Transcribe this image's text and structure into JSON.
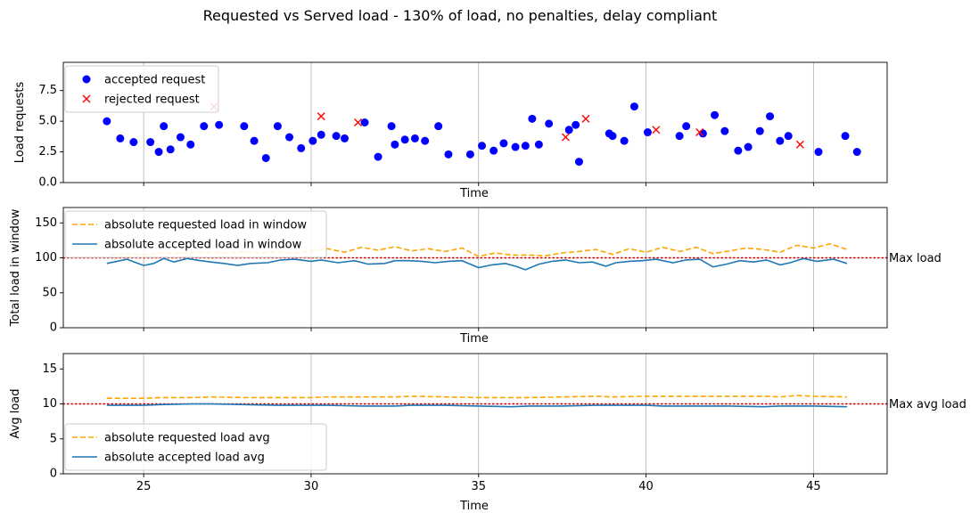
{
  "figure_title": "Requested vs Served load - 130% of load, no penalties, delay compliant",
  "colors": {
    "accepted_marker": "#0000ff",
    "rejected_marker": "#ff0000",
    "requested_line": "#ffa500",
    "accepted_line": "#1f77b4",
    "limit_line": "#cc0000",
    "grid": "#b0b0b0"
  },
  "chart_data": [
    {
      "type": "scatter",
      "xlabel": "Time",
      "ylabel": "Load requests",
      "xlim": [
        22.6,
        47.2
      ],
      "ylim": [
        0,
        9.8
      ],
      "xticks": [
        25,
        30,
        35,
        40,
        45
      ],
      "yticks": [
        0.0,
        2.5,
        5.0,
        7.5
      ],
      "ytick_labels": [
        "0.0",
        "2.5",
        "5.0",
        "7.5"
      ],
      "grid": "x",
      "legend_position": "upper-left",
      "series": [
        {
          "name": "accepted request",
          "marker": "circle",
          "color": "#0000ff",
          "x": [
            23.9,
            24.3,
            24.7,
            25.2,
            25.45,
            25.6,
            25.8,
            26.1,
            26.4,
            26.8,
            27.25,
            28.0,
            28.3,
            28.65,
            29.0,
            29.35,
            29.7,
            30.05,
            30.3,
            30.75,
            31.0,
            31.6,
            32.0,
            32.4,
            32.5,
            32.8,
            33.1,
            33.4,
            33.8,
            34.1,
            34.75,
            35.1,
            35.45,
            35.75,
            36.1,
            36.4,
            36.6,
            36.8,
            37.1,
            37.7,
            37.9,
            38.0,
            38.9,
            39.0,
            39.35,
            39.65,
            40.05,
            41.0,
            41.2,
            41.7,
            42.05,
            42.35,
            42.75,
            43.05,
            43.4,
            43.7,
            44.0,
            44.25,
            45.15,
            45.95,
            46.3
          ],
          "y": [
            5.0,
            3.6,
            3.3,
            3.3,
            2.5,
            4.6,
            2.7,
            3.7,
            3.1,
            4.6,
            4.7,
            4.6,
            3.4,
            2.0,
            4.6,
            3.7,
            2.8,
            3.4,
            3.9,
            3.8,
            3.6,
            4.9,
            2.1,
            4.6,
            3.1,
            3.5,
            3.6,
            3.4,
            4.6,
            2.3,
            2.3,
            3.0,
            2.6,
            3.2,
            2.9,
            3.0,
            5.2,
            3.1,
            4.8,
            4.3,
            4.7,
            1.7,
            4.0,
            3.8,
            3.4,
            6.2,
            4.1,
            3.8,
            4.6,
            4.0,
            5.5,
            4.2,
            2.6,
            2.9,
            4.2,
            5.4,
            3.4,
            3.8,
            2.5,
            3.8,
            2.5
          ]
        },
        {
          "name": "rejected request",
          "marker": "x",
          "color": "#ff0000",
          "x": [
            27.1,
            30.3,
            31.4,
            37.6,
            38.2,
            40.3,
            41.6,
            44.6
          ],
          "y": [
            6.2,
            5.4,
            4.9,
            3.7,
            5.2,
            4.3,
            4.1,
            3.1
          ]
        }
      ]
    },
    {
      "type": "line",
      "xlabel": "Time",
      "ylabel": "Total load in window",
      "xlim": [
        22.6,
        47.2
      ],
      "ylim": [
        0,
        172
      ],
      "xticks": [
        25,
        30,
        35,
        40,
        45
      ],
      "yticks": [
        0,
        50,
        100,
        150
      ],
      "ytick_labels": [
        "0",
        "50",
        "100",
        "150"
      ],
      "grid": "x",
      "legend_position": "upper-left",
      "hline": {
        "y": 100,
        "label": "Max load",
        "style": "dotted",
        "color": "#cc0000"
      },
      "series": [
        {
          "name": "absolute requested load in window",
          "style": "dashed",
          "color": "#ffa500",
          "x": [
            24.0,
            24.5,
            25.0,
            25.5,
            26.0,
            26.5,
            27.0,
            27.5,
            28.0,
            28.5,
            29.0,
            29.5,
            30.0,
            30.5,
            31.0,
            31.5,
            32.0,
            32.5,
            33.0,
            33.5,
            34.0,
            34.5,
            35.0,
            35.5,
            36.0,
            36.5,
            37.0,
            37.5,
            38.0,
            38.5,
            39.0,
            39.5,
            40.0,
            40.5,
            41.0,
            41.5,
            42.0,
            42.5,
            43.0,
            43.5,
            44.0,
            44.5,
            45.0,
            45.5,
            46.0
          ],
          "y": [
            104,
            106,
            104,
            107,
            106,
            108,
            108,
            107,
            109,
            107,
            109,
            106,
            110,
            113,
            108,
            115,
            111,
            116,
            110,
            113,
            109,
            114,
            102,
            107,
            104,
            104,
            103,
            107,
            109,
            112,
            105,
            113,
            108,
            115,
            109,
            115,
            106,
            110,
            114,
            112,
            108,
            118,
            114,
            120,
            112
          ]
        },
        {
          "name": "absolute accepted load in window",
          "style": "solid",
          "color": "#1f77b4",
          "x": [
            23.9,
            24.5,
            25.0,
            25.3,
            25.6,
            25.9,
            26.3,
            26.7,
            27.0,
            27.4,
            27.8,
            28.2,
            28.7,
            29.1,
            29.5,
            30.0,
            30.3,
            30.8,
            31.3,
            31.7,
            32.2,
            32.5,
            32.9,
            33.3,
            33.7,
            34.1,
            34.5,
            35.0,
            35.4,
            35.8,
            36.1,
            36.4,
            36.8,
            37.2,
            37.6,
            38.0,
            38.4,
            38.8,
            39.1,
            39.5,
            39.9,
            40.3,
            40.8,
            41.2,
            41.6,
            42.0,
            42.4,
            42.8,
            43.2,
            43.6,
            44.0,
            44.3,
            44.7,
            45.1,
            45.6,
            46.0
          ],
          "y": [
            92,
            98,
            89,
            92,
            99,
            94,
            99,
            96,
            94,
            92,
            89,
            92,
            93,
            97,
            98,
            95,
            97,
            93,
            96,
            91,
            92,
            96,
            96,
            95,
            93,
            95,
            96,
            86,
            90,
            92,
            88,
            83,
            91,
            95,
            97,
            93,
            94,
            88,
            93,
            95,
            96,
            98,
            93,
            97,
            98,
            87,
            91,
            96,
            94,
            97,
            90,
            93,
            99,
            95,
            98,
            92
          ]
        }
      ]
    },
    {
      "type": "line",
      "xlabel": "Time",
      "ylabel": "Avg load",
      "xlim": [
        22.6,
        47.2
      ],
      "ylim": [
        0,
        17.2
      ],
      "xticks": [
        25,
        30,
        35,
        40,
        45
      ],
      "yticks": [
        0,
        5,
        10,
        15
      ],
      "ytick_labels": [
        "0",
        "5",
        "10",
        "15"
      ],
      "grid": "x",
      "legend_position": "lower-left",
      "hline": {
        "y": 10,
        "label": "Max avg load",
        "style": "dotted",
        "color": "#cc0000"
      },
      "series": [
        {
          "name": "absolute requested load avg",
          "style": "dashed",
          "color": "#ffa500",
          "x": [
            23.9,
            25.0,
            25.5,
            26.5,
            27.0,
            28.0,
            29.0,
            30.0,
            30.5,
            31.5,
            32.5,
            33.0,
            34.0,
            35.0,
            36.0,
            36.5,
            37.5,
            38.5,
            39.0,
            40.0,
            40.5,
            41.5,
            42.5,
            43.5,
            44.0,
            44.5,
            45.0,
            46.0
          ],
          "y": [
            10.8,
            10.8,
            10.9,
            10.9,
            11.0,
            10.9,
            10.9,
            10.9,
            11.0,
            11.0,
            11.0,
            11.1,
            11.0,
            10.9,
            10.9,
            10.9,
            11.0,
            11.1,
            11.0,
            11.1,
            11.1,
            11.1,
            11.1,
            11.1,
            11.0,
            11.2,
            11.1,
            11.0
          ]
        },
        {
          "name": "absolute accepted load avg",
          "style": "solid",
          "color": "#1f77b4",
          "x": [
            23.9,
            25.0,
            25.5,
            26.5,
            27.0,
            28.0,
            29.0,
            30.0,
            30.5,
            31.5,
            32.5,
            33.0,
            34.0,
            35.0,
            36.0,
            36.5,
            37.5,
            38.5,
            39.0,
            40.0,
            40.5,
            41.5,
            42.5,
            43.5,
            44.0,
            44.5,
            45.0,
            46.0
          ],
          "y": [
            9.8,
            9.8,
            9.9,
            10.0,
            10.0,
            9.9,
            9.8,
            9.8,
            9.8,
            9.7,
            9.7,
            9.8,
            9.8,
            9.7,
            9.6,
            9.7,
            9.7,
            9.8,
            9.8,
            9.8,
            9.7,
            9.7,
            9.7,
            9.6,
            9.7,
            9.7,
            9.7,
            9.6
          ]
        }
      ]
    }
  ]
}
